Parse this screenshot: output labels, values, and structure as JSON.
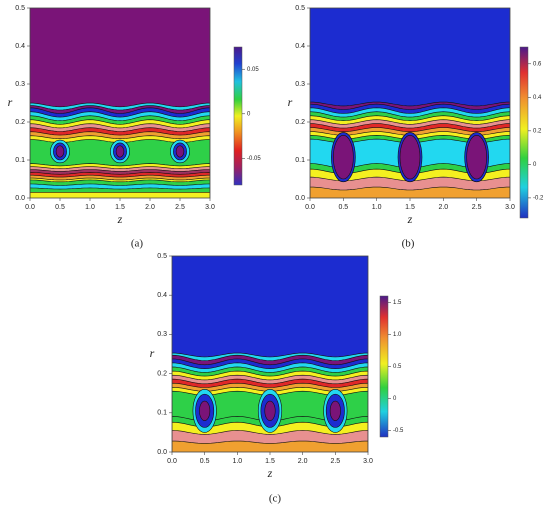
{
  "chart_data": [
    {
      "type": "contour",
      "label": "(a)",
      "xlabel": "z",
      "ylabel": "r",
      "xlim": [
        0,
        3
      ],
      "ylim": [
        0,
        0.5
      ],
      "xticks": [
        {
          "value": 0,
          "label": "0.0"
        },
        0.5,
        {
          "value": 1,
          "label": "1.0"
        },
        1.5,
        {
          "value": 2,
          "label": "2.0"
        },
        2.5,
        {
          "value": 3,
          "label": "3.0"
        }
      ],
      "yticks": [
        {
          "value": 0,
          "label": "0.0"
        },
        0.1,
        0.2,
        0.3,
        0.4,
        0.5
      ],
      "clim": [
        -0.08,
        0.075
      ],
      "cticks": [
        0.05,
        0,
        -0.05
      ]
    },
    {
      "type": "contour",
      "label": "(b)",
      "xlabel": "z",
      "ylabel": "r",
      "xlim": [
        0,
        3
      ],
      "ylim": [
        0,
        0.5
      ],
      "xticks": [
        {
          "value": 0,
          "label": "0.0"
        },
        0.5,
        {
          "value": 1,
          "label": "1.0"
        },
        1.5,
        {
          "value": 2,
          "label": "2.0"
        },
        2.5,
        {
          "value": 3,
          "label": "3.0"
        }
      ],
      "yticks": [
        {
          "value": 0,
          "label": "0.0"
        },
        0.1,
        0.2,
        0.3,
        0.4,
        0.5
      ],
      "clim": [
        -0.32,
        0.7
      ],
      "cticks": [
        0.6,
        0.4,
        0.2,
        0,
        -0.2
      ]
    },
    {
      "type": "contour",
      "label": "(c)",
      "xlabel": "z",
      "ylabel": "r",
      "xlim": [
        0,
        3
      ],
      "ylim": [
        0,
        0.5
      ],
      "xticks": [
        {
          "value": 0,
          "label": "0.0"
        },
        0.5,
        {
          "value": 1,
          "label": "1.0"
        },
        1.5,
        {
          "value": 2,
          "label": "2.0"
        },
        2.5,
        {
          "value": 3,
          "label": "3.0"
        }
      ],
      "yticks": [
        {
          "value": 0,
          "label": "0.0"
        },
        0.1,
        0.2,
        0.3,
        0.4,
        0.5
      ],
      "clim": [
        -0.6,
        1.6
      ],
      "cticks": [
        1.5,
        {
          "value": 1,
          "label": "1.0"
        },
        0.5,
        0,
        -0.5
      ]
    }
  ]
}
